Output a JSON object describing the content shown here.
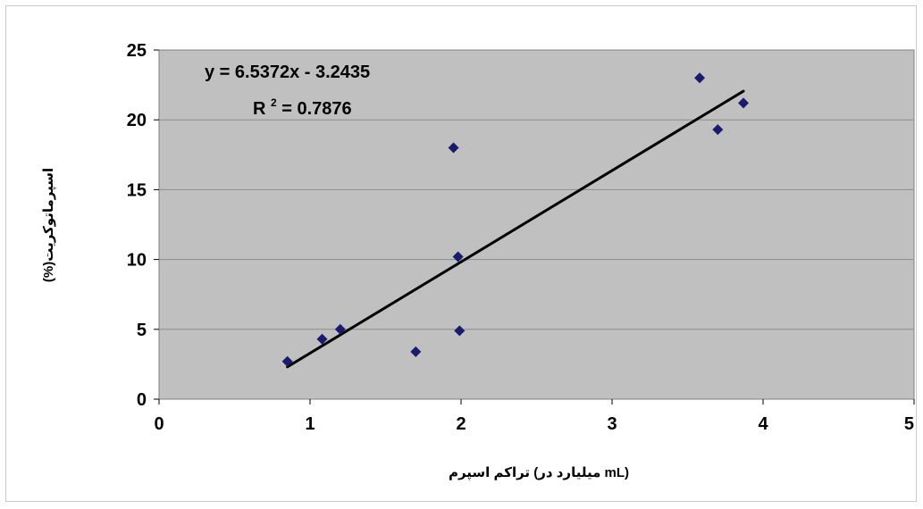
{
  "chart_data": {
    "type": "scatter",
    "title": "",
    "xlabel": "تراکم اسپرم (میلیارد در mL)",
    "ylabel": "(%)اسپرماتوکریت",
    "xlim": [
      0,
      5
    ],
    "ylim": [
      0,
      25
    ],
    "x_ticks": [
      "0",
      "1",
      "2",
      "3",
      "4",
      "5"
    ],
    "y_ticks": [
      "0",
      "5",
      "10",
      "15",
      "20",
      "25"
    ],
    "grid": "horizontal",
    "legend": "none",
    "colors": {
      "plot_background": "#c0c0c0",
      "marker": "#1a1a6e",
      "trendline": "#000000",
      "gridline": "#8c8c8c"
    },
    "series": [
      {
        "points": [
          {
            "x": 0.85,
            "y": 2.7
          },
          {
            "x": 1.08,
            "y": 4.3
          },
          {
            "x": 1.2,
            "y": 5.0
          },
          {
            "x": 1.7,
            "y": 3.4
          },
          {
            "x": 1.95,
            "y": 18.0
          },
          {
            "x": 1.98,
            "y": 10.2
          },
          {
            "x": 1.99,
            "y": 4.9
          },
          {
            "x": 3.58,
            "y": 23.0
          },
          {
            "x": 3.7,
            "y": 19.3
          },
          {
            "x": 3.87,
            "y": 21.2
          }
        ]
      }
    ],
    "trendline": {
      "slope": 6.5372,
      "intercept": -3.2435,
      "x_range": [
        0.85,
        3.87
      ],
      "equation": "y = 6.5372x - 3.2435",
      "r2_prefix": "R",
      "r2_sup": "2",
      "r2_value": " = 0.7876"
    }
  }
}
